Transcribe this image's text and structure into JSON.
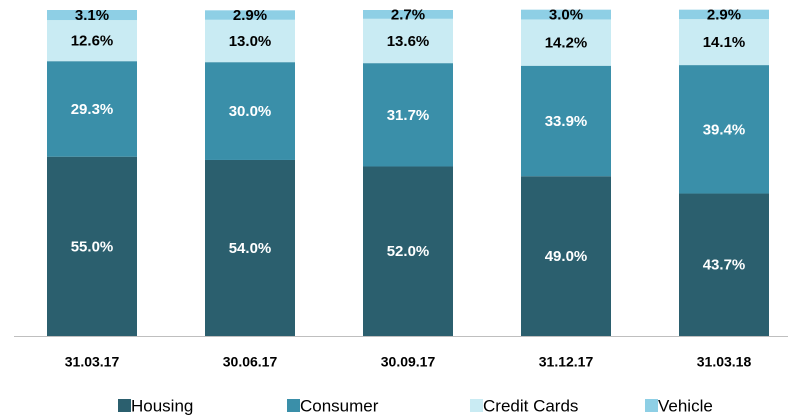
{
  "chart_data": {
    "type": "stacked_bar",
    "categories": [
      "31.03.17",
      "30.06.17",
      "30.09.17",
      "31.12.17",
      "31.03.18"
    ],
    "series": [
      {
        "name": "Housing",
        "color": "#2b5f6e",
        "values": [
          55.0,
          54.0,
          52.0,
          49.0,
          43.7
        ],
        "value_labels": [
          "55.0%",
          "54.0%",
          "52.0%",
          "49.0%",
          "43.7%"
        ]
      },
      {
        "name": "Consumer",
        "color": "#3a8fa9",
        "values": [
          29.3,
          30.0,
          31.7,
          33.9,
          39.4
        ],
        "value_labels": [
          "29.3%",
          "30.0%",
          "31.7%",
          "33.9%",
          "39.4%"
        ]
      },
      {
        "name": "Credit Cards",
        "color": "#c9ebf3",
        "values": [
          12.6,
          13.0,
          13.6,
          14.2,
          14.1
        ],
        "value_labels": [
          "12.6%",
          "13.0%",
          "13.6%",
          "14.2%",
          "14.1%"
        ]
      },
      {
        "name": "Vehicle",
        "color": "#8ecfe5",
        "values": [
          3.1,
          2.9,
          2.7,
          3.0,
          2.9
        ],
        "value_labels": [
          "3.1%",
          "2.9%",
          "2.7%",
          "3.0%",
          "2.9%"
        ]
      }
    ],
    "ylim": [
      0,
      100
    ]
  }
}
